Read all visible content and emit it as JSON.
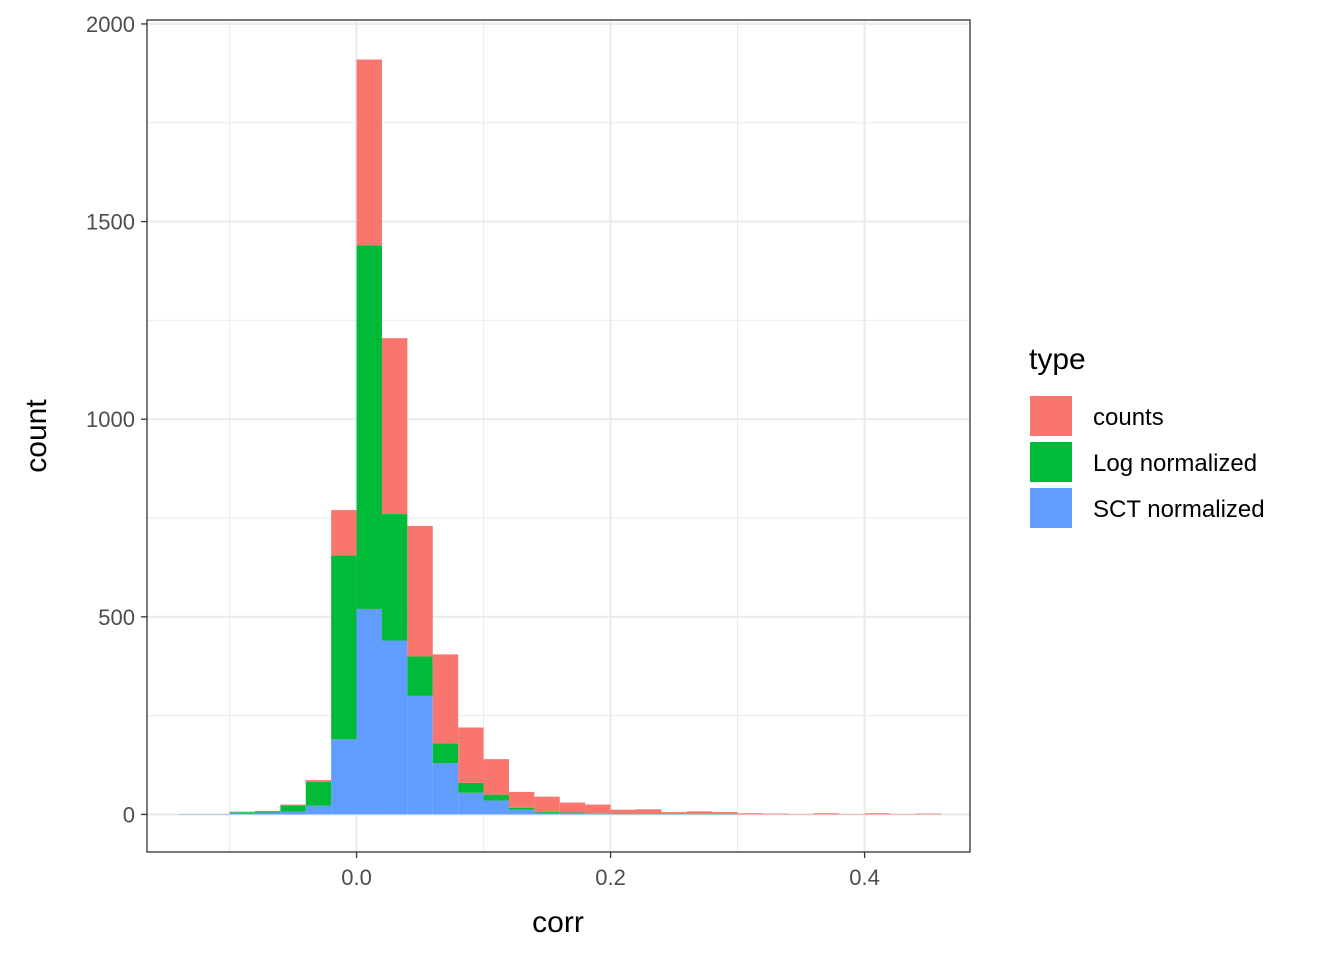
{
  "chart_data": {
    "type": "bar",
    "subtype": "stacked-histogram",
    "xlabel": "corr",
    "ylabel": "count",
    "xlim": [
      -0.165,
      0.483
    ],
    "ylim": [
      -95,
      2010
    ],
    "xticks": [
      0.0,
      0.2,
      0.4
    ],
    "xtick_labels": [
      "0.0",
      "0.2",
      "0.4"
    ],
    "yticks": [
      0,
      500,
      1000,
      1500,
      2000
    ],
    "ytick_labels": [
      "0",
      "500",
      "1000",
      "1500",
      "2000"
    ],
    "grid": true,
    "legend": {
      "title": "type",
      "position": "right"
    },
    "bin_width": 0.02,
    "bin_starts": [
      -0.14,
      -0.12,
      -0.1,
      -0.08,
      -0.06,
      -0.04,
      -0.02,
      0.0,
      0.02,
      0.04,
      0.06,
      0.08,
      0.1,
      0.12,
      0.14,
      0.16,
      0.18,
      0.2,
      0.22,
      0.24,
      0.26,
      0.28,
      0.3,
      0.32,
      0.34,
      0.36,
      0.38,
      0.4,
      0.42,
      0.44
    ],
    "series": [
      {
        "name": "SCT normalized",
        "color": "#619CFF",
        "values": [
          1,
          1,
          4,
          5,
          7,
          22,
          190,
          520,
          440,
          300,
          130,
          55,
          35,
          12,
          4,
          3,
          2,
          1,
          1,
          1,
          1,
          1,
          0,
          0,
          0,
          0,
          0,
          0,
          0,
          0
        ]
      },
      {
        "name": "Log normalized",
        "color": "#00BA38",
        "values": [
          0,
          0,
          2,
          3,
          16,
          60,
          465,
          920,
          320,
          100,
          50,
          25,
          15,
          5,
          3,
          2,
          1,
          1,
          1,
          1,
          1,
          1,
          0,
          0,
          0,
          0,
          0,
          0,
          0,
          0
        ]
      },
      {
        "name": "counts",
        "color": "#F8766D",
        "values": [
          0,
          0,
          1,
          1,
          2,
          5,
          115,
          470,
          445,
          330,
          225,
          140,
          90,
          40,
          38,
          25,
          22,
          10,
          11,
          4,
          6,
          4,
          3,
          2,
          1,
          3,
          1,
          3,
          1,
          2
        ]
      }
    ]
  }
}
